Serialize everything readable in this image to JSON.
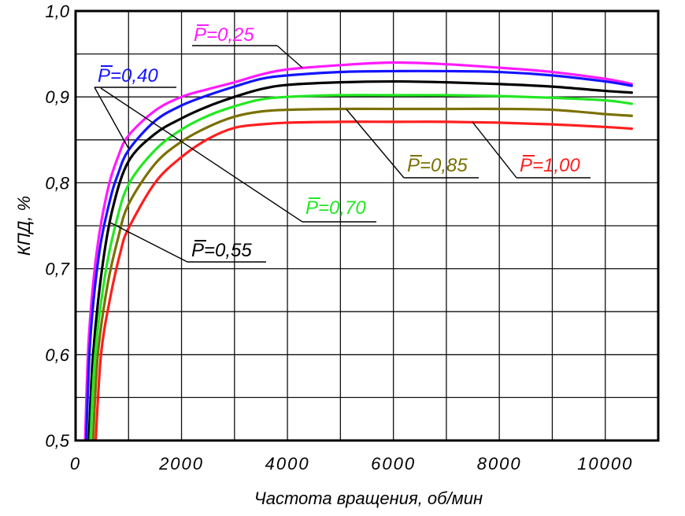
{
  "chart_data": {
    "type": "line",
    "title": "",
    "xlabel": "Частота вращения, об/мин",
    "ylabel": "КПД, %",
    "xlim": [
      0,
      11000
    ],
    "ylim": [
      0.5,
      1.0
    ],
    "grid": {
      "on": true,
      "x_step": 1000,
      "y_step": 0.05
    },
    "x_ticks": {
      "values": [
        0,
        2000,
        4000,
        6000,
        8000,
        10000
      ],
      "labels": [
        "0",
        "2000",
        "4000",
        "6000",
        "8000",
        "10000"
      ]
    },
    "y_ticks": {
      "values": [
        0.5,
        0.6,
        0.7,
        0.8,
        0.9,
        1.0
      ],
      "labels": [
        "0,5",
        "0,6",
        "0,7",
        "0,8",
        "0,9",
        "1,0"
      ]
    },
    "series": [
      {
        "label_symbol": "P",
        "label_value": "=0,25",
        "color": "#ff1aff",
        "x": [
          180,
          250,
          400,
          600,
          800,
          1000,
          1500,
          2000,
          2500,
          3000,
          3500,
          4000,
          5000,
          6000,
          7000,
          8000,
          9000,
          10000,
          10500
        ],
        "y": [
          0.5,
          0.62,
          0.72,
          0.79,
          0.83,
          0.855,
          0.884,
          0.9,
          0.909,
          0.917,
          0.926,
          0.932,
          0.937,
          0.94,
          0.938,
          0.934,
          0.929,
          0.921,
          0.915
        ]
      },
      {
        "label_symbol": "P",
        "label_value": "=0,40",
        "color": "#1414ff",
        "x": [
          200,
          280,
          450,
          650,
          800,
          1000,
          1500,
          2000,
          2500,
          3000,
          3500,
          4000,
          5000,
          6000,
          7000,
          8000,
          9000,
          10000,
          10500
        ],
        "y": [
          0.5,
          0.62,
          0.72,
          0.78,
          0.81,
          0.838,
          0.872,
          0.89,
          0.902,
          0.912,
          0.921,
          0.925,
          0.929,
          0.93,
          0.93,
          0.929,
          0.925,
          0.918,
          0.913
        ]
      },
      {
        "label_symbol": "P",
        "label_value": "=0,55",
        "color": "#000000",
        "x": [
          250,
          330,
          500,
          700,
          1000,
          1500,
          2000,
          2500,
          3000,
          3500,
          4000,
          5000,
          6000,
          7000,
          8000,
          9000,
          10000,
          10500
        ],
        "y": [
          0.5,
          0.6,
          0.7,
          0.77,
          0.825,
          0.857,
          0.875,
          0.889,
          0.9,
          0.909,
          0.914,
          0.917,
          0.918,
          0.917,
          0.915,
          0.912,
          0.907,
          0.905
        ]
      },
      {
        "label_symbol": "P",
        "label_value": "=0,70",
        "color": "#22e822",
        "x": [
          280,
          370,
          550,
          750,
          1000,
          1500,
          2000,
          2500,
          3000,
          3500,
          4000,
          5000,
          6000,
          7000,
          8000,
          9000,
          10000,
          10500
        ],
        "y": [
          0.5,
          0.6,
          0.69,
          0.75,
          0.798,
          0.838,
          0.862,
          0.878,
          0.889,
          0.897,
          0.9,
          0.902,
          0.902,
          0.902,
          0.901,
          0.899,
          0.896,
          0.892
        ]
      },
      {
        "label_symbol": "P",
        "label_value": "=0,85",
        "color": "#7a7000",
        "x": [
          330,
          420,
          600,
          800,
          1000,
          1500,
          2000,
          2500,
          3000,
          3500,
          4000,
          5000,
          6000,
          7000,
          8000,
          9000,
          10000,
          10500
        ],
        "y": [
          0.5,
          0.6,
          0.68,
          0.735,
          0.775,
          0.822,
          0.848,
          0.865,
          0.877,
          0.883,
          0.885,
          0.886,
          0.886,
          0.886,
          0.886,
          0.885,
          0.88,
          0.878
        ]
      },
      {
        "label_symbol": "P",
        "label_value": "=1,00",
        "color": "#ff1e1e",
        "x": [
          380,
          480,
          650,
          850,
          1000,
          1500,
          2000,
          2500,
          3000,
          3500,
          4000,
          5000,
          6000,
          7000,
          8000,
          9000,
          10000,
          10500
        ],
        "y": [
          0.5,
          0.6,
          0.665,
          0.72,
          0.747,
          0.8,
          0.83,
          0.851,
          0.864,
          0.868,
          0.87,
          0.871,
          0.871,
          0.871,
          0.87,
          0.868,
          0.865,
          0.863
        ]
      }
    ]
  }
}
